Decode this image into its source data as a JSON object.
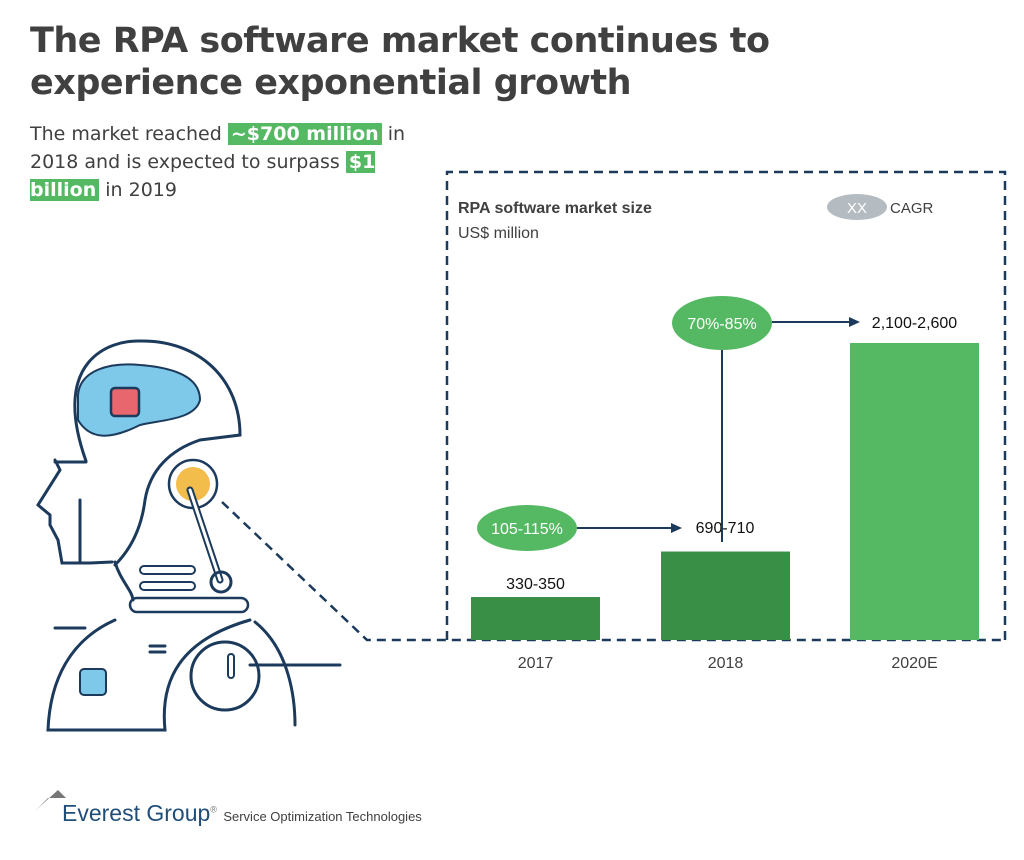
{
  "title": "The RPA software market continues to experience exponential growth",
  "subtitle": {
    "part1": "The market reached ",
    "highlight1": "~$700 million",
    "part2": " in 2018 and is expected to surpass ",
    "highlight2": "$1 billion",
    "part3": " in 2019"
  },
  "colors": {
    "dark_green": "#3a8f47",
    "light_green": "#55b963",
    "navy": "#1b3a5c",
    "grey": "#b4bcc2",
    "title": "#404040"
  },
  "chart_data": {
    "type": "bar",
    "title": "RPA software market size",
    "ylabel": "US$ million",
    "categories": [
      "2017",
      "2018",
      "2020E"
    ],
    "values": [
      340,
      700,
      2350
    ],
    "value_labels": [
      "330-350",
      "690-710",
      "2,100-2,600"
    ],
    "bar_colors": [
      "#3a8f47",
      "#3a8f47",
      "#55b963"
    ],
    "legend": {
      "marker": "XX",
      "label": "CAGR"
    },
    "annotations": [
      {
        "label": "105-115%",
        "from": "2017",
        "to": "2018"
      },
      {
        "label": "70%-85%",
        "from": "2018",
        "to": "2020E"
      }
    ],
    "ylim": [
      0,
      2600
    ]
  },
  "footer": {
    "brand": "Everest Group",
    "registered": "®",
    "tagline": "Service Optimization Technologies"
  }
}
